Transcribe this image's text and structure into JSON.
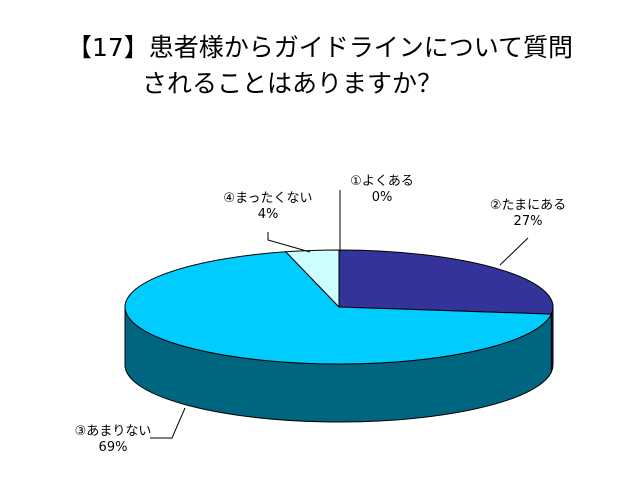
{
  "title_line1": "【17】患者様からガイドラインについて質問",
  "title_line2": "されることはありますか？",
  "chart_data": {
    "type": "pie",
    "style": "3d",
    "categories": [
      "①よくある",
      "②たまにある",
      "③あまりない",
      "④まったくない"
    ],
    "values": [
      0,
      27,
      69,
      4
    ],
    "value_labels": [
      "0%",
      "27%",
      "69%",
      "4%"
    ],
    "colors": [
      "#333399",
      "#333399",
      "#00CCFF",
      "#CCFFFF"
    ],
    "side_colors": [
      "#1a1a66",
      "#1a1a66",
      "#006680",
      "#669999"
    ]
  }
}
